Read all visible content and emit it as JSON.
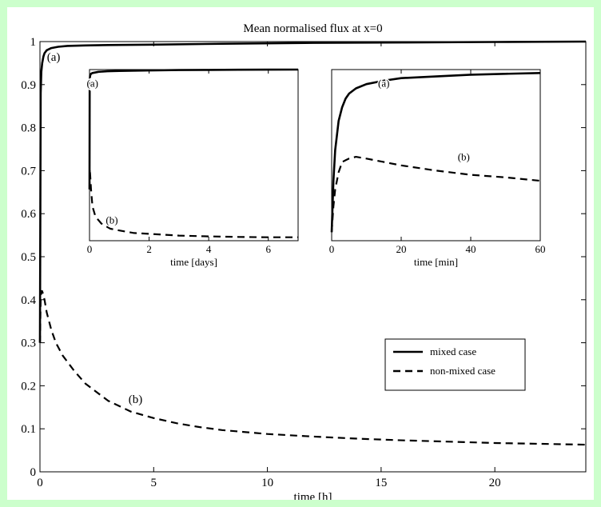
{
  "chart_data": [
    {
      "type": "line",
      "title": "Mean normalised flux at x=0",
      "xlabel": "time [h]",
      "ylabel": "",
      "xlim": [
        0,
        24
      ],
      "ylim": [
        0,
        1
      ],
      "xticks": [
        0,
        5,
        10,
        15,
        20
      ],
      "yticks": [
        0,
        0.1,
        0.2,
        0.3,
        0.4,
        0.5,
        0.6,
        0.7,
        0.8,
        0.9,
        1
      ],
      "ytick_labels": [
        "0",
        "0.1",
        "0.2",
        "0.3",
        "0.4",
        "0.5",
        "0.6",
        "0.7",
        "0.8",
        "0.9",
        "1"
      ],
      "legend_position": "lower-right",
      "series": [
        {
          "name": "mixed case",
          "style": "solid",
          "x": [
            0,
            0.03,
            0.06,
            0.1,
            0.15,
            0.2,
            0.3,
            0.5,
            0.8,
            1.2,
            2,
            3,
            5,
            8,
            12,
            16,
            20,
            24
          ],
          "y": [
            0.3,
            0.88,
            0.93,
            0.95,
            0.965,
            0.973,
            0.98,
            0.985,
            0.988,
            0.99,
            0.991,
            0.992,
            0.993,
            0.995,
            0.997,
            0.998,
            0.999,
            1.0
          ]
        },
        {
          "name": "non-mixed case",
          "style": "dashed",
          "x": [
            0,
            0.03,
            0.06,
            0.1,
            0.15,
            0.2,
            0.3,
            0.5,
            0.7,
            1,
            1.5,
            2,
            2.5,
            3,
            4,
            5,
            6,
            7,
            8,
            10,
            12,
            14,
            16,
            18,
            20,
            22,
            24
          ],
          "y": [
            0.3,
            0.4,
            0.42,
            0.42,
            0.41,
            0.4,
            0.37,
            0.33,
            0.3,
            0.27,
            0.235,
            0.205,
            0.185,
            0.165,
            0.14,
            0.125,
            0.113,
            0.104,
            0.097,
            0.088,
            0.082,
            0.077,
            0.073,
            0.07,
            0.067,
            0.065,
            0.063
          ]
        }
      ],
      "annotations": [
        {
          "text": "(a)",
          "x": 0.6,
          "y": 0.955
        },
        {
          "text": "(b)",
          "x": 4.2,
          "y": 0.16
        }
      ]
    },
    {
      "type": "line",
      "title": "",
      "xlabel": "time [days]",
      "xlim": [
        0,
        7
      ],
      "ylim": [
        0,
        1
      ],
      "xticks": [
        0,
        2,
        4,
        6
      ],
      "series": [
        {
          "name": "mixed case",
          "style": "solid",
          "x": [
            0,
            0.005,
            0.01,
            0.02,
            0.05,
            0.1,
            0.3,
            0.6,
            1,
            2,
            3,
            4,
            5,
            6,
            7
          ],
          "y": [
            0.3,
            0.88,
            0.94,
            0.965,
            0.975,
            0.98,
            0.987,
            0.99,
            0.992,
            0.995,
            0.997,
            0.998,
            0.999,
            0.9995,
            1.0
          ]
        },
        {
          "name": "non-mixed case",
          "style": "dashed",
          "x": [
            0,
            0.005,
            0.01,
            0.05,
            0.1,
            0.2,
            0.4,
            0.7,
            1,
            1.5,
            2,
            3,
            4,
            5,
            6,
            7
          ],
          "y": [
            0.3,
            0.4,
            0.42,
            0.3,
            0.2,
            0.14,
            0.1,
            0.07,
            0.06,
            0.045,
            0.04,
            0.03,
            0.025,
            0.022,
            0.02,
            0.02
          ]
        }
      ],
      "annotations": [
        {
          "text": "(a)",
          "x": 0.1,
          "y": 0.9
        },
        {
          "text": "(b)",
          "x": 0.75,
          "y": 0.1
        }
      ]
    },
    {
      "type": "line",
      "title": "",
      "xlabel": "time [min]",
      "xlim": [
        0,
        60
      ],
      "ylim": [
        0,
        1
      ],
      "xticks": [
        0,
        20,
        40,
        60
      ],
      "series": [
        {
          "name": "mixed case",
          "style": "solid",
          "x": [
            0,
            0.5,
            1,
            2,
            3,
            4,
            5,
            7,
            10,
            15,
            20,
            30,
            40,
            50,
            60
          ],
          "y": [
            0.05,
            0.35,
            0.53,
            0.7,
            0.78,
            0.83,
            0.86,
            0.89,
            0.915,
            0.935,
            0.95,
            0.96,
            0.97,
            0.975,
            0.98
          ]
        },
        {
          "name": "non-mixed case",
          "style": "dashed",
          "x": [
            0,
            0.5,
            1,
            2,
            3,
            4,
            5,
            7,
            10,
            15,
            20,
            30,
            40,
            50,
            60
          ],
          "y": [
            0.05,
            0.2,
            0.3,
            0.4,
            0.46,
            0.47,
            0.48,
            0.49,
            0.48,
            0.46,
            0.44,
            0.41,
            0.385,
            0.37,
            0.35
          ]
        }
      ],
      "annotations": [
        {
          "text": "(a)",
          "x": 15,
          "y": 0.9
        },
        {
          "text": "(b)",
          "x": 38,
          "y": 0.47
        }
      ]
    }
  ]
}
